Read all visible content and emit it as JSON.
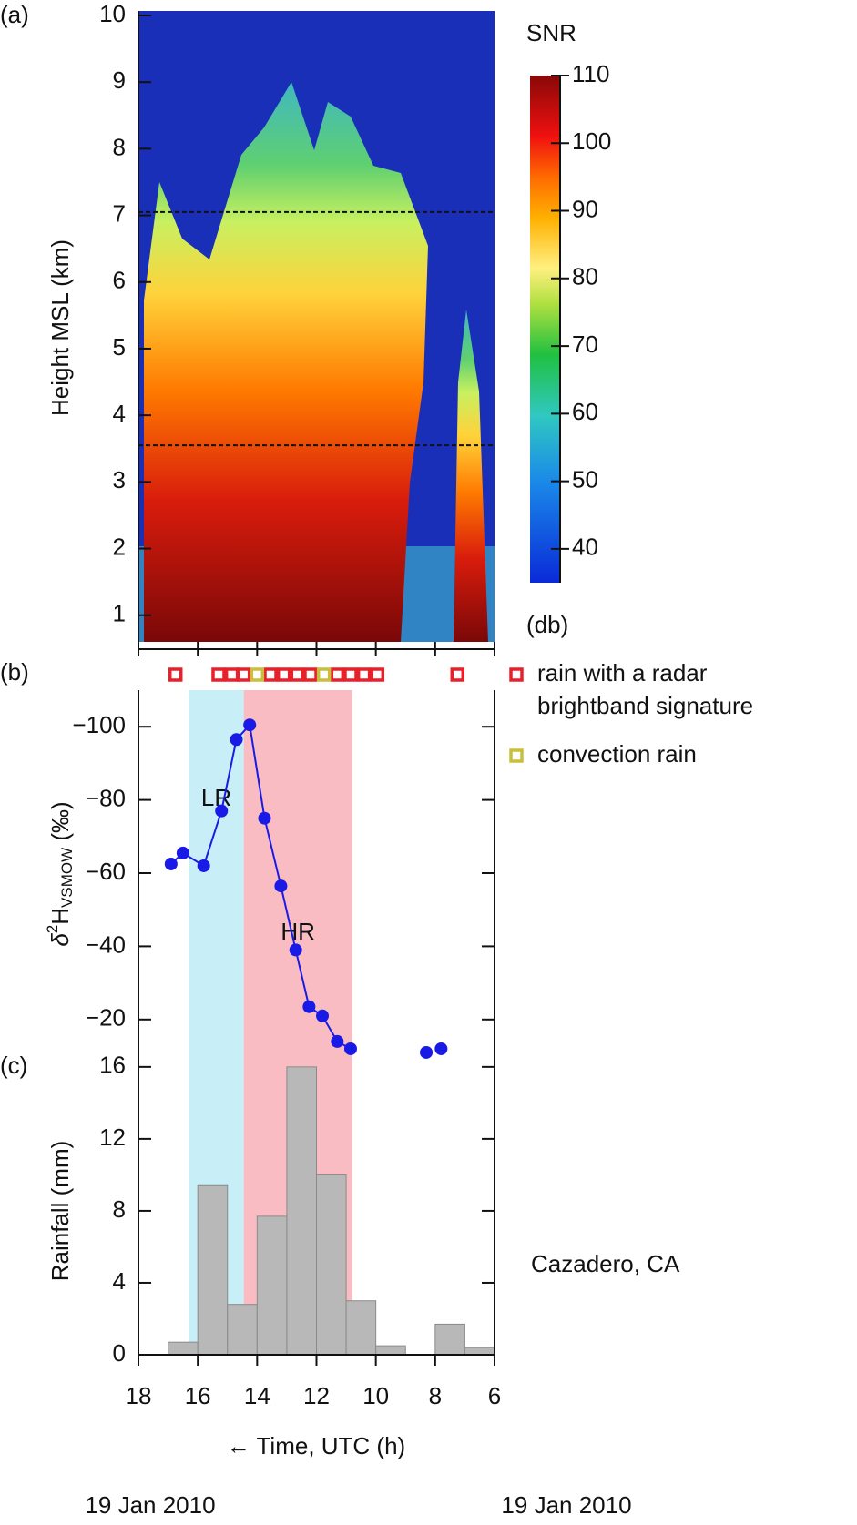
{
  "chart_data": [
    {
      "type": "heatmap",
      "panel": "(a)",
      "ylabel": "Height MSL (km)",
      "xlim": [
        18,
        6
      ],
      "ylim": [
        0.6,
        10
      ],
      "yticks": [
        1,
        2,
        3,
        4,
        5,
        6,
        7,
        8,
        9,
        10
      ],
      "xticks": [
        18,
        16,
        14,
        12,
        10,
        8,
        6
      ],
      "reference_lines": [
        7.05,
        3.55
      ],
      "colorbar": {
        "title": "SNR",
        "unit": "(db)",
        "lim": [
          35,
          110
        ],
        "ticks": [
          40,
          50,
          60,
          70,
          80,
          90,
          100,
          110
        ]
      }
    },
    {
      "type": "line",
      "panel": "(b)",
      "ylabel": {
        "delta": "δ",
        "sup": "2",
        "h": "H",
        "sub": "VSMOW",
        "unit": " (‰)"
      },
      "xlim": [
        18,
        6
      ],
      "ylim": [
        -10,
        -110
      ],
      "yticks": [
        {
          "value": -20,
          "label": "−20"
        },
        {
          "value": -40,
          "label": "−40"
        },
        {
          "value": -60,
          "label": "−60"
        },
        {
          "value": -80,
          "label": "−80"
        },
        {
          "value": -100,
          "label": "−100"
        }
      ],
      "series": [
        {
          "color": "#1a1ae6",
          "line": true,
          "x": [
            16.9,
            16.5,
            15.8,
            15.2,
            14.7,
            14.25,
            13.75,
            13.2,
            12.7,
            12.25,
            11.8,
            11.3,
            10.85
          ],
          "values": [
            -62.5,
            -65.5,
            -62,
            -77,
            -96.5,
            -100.5,
            -75,
            -56.5,
            -39,
            -23.5,
            -21,
            -14,
            -12
          ]
        },
        {
          "color": "#1a1ae6",
          "line": false,
          "x": [
            8.3,
            7.8
          ],
          "values": [
            -11,
            -12
          ]
        }
      ],
      "markers": [
        {
          "name": "rain with a radar brightband signature",
          "color": "#e8202a",
          "x": [
            16.75,
            15.3,
            14.85,
            14.45,
            13.55,
            13.1,
            12.65,
            12.2,
            11.3,
            10.85,
            10.4,
            9.95,
            7.25
          ]
        },
        {
          "name": "convection rain",
          "color": "#c8c03c",
          "x": [
            14.0,
            11.75
          ]
        }
      ],
      "regions": [
        {
          "label": "LR",
          "color": "#c8eef8",
          "x": [
            16.3,
            14.45
          ]
        },
        {
          "label": "HR",
          "color": "#f8bcc2",
          "x": [
            14.45,
            10.8
          ]
        }
      ]
    },
    {
      "type": "histogram",
      "panel": "(c)",
      "ylabel": "Rainfall (mm)",
      "xlim": [
        18,
        6
      ],
      "ylim": [
        0,
        16.6
      ],
      "yticks": [
        0,
        4,
        8,
        12,
        16
      ],
      "xticks": [
        18,
        16,
        14,
        12,
        10,
        8,
        6
      ],
      "bins": [
        17,
        16,
        15,
        14,
        13,
        12,
        11,
        10,
        9,
        8,
        7,
        6
      ],
      "values": [
        0.7,
        9.4,
        2.8,
        7.7,
        16,
        10,
        3.0,
        0.5,
        0,
        1.7,
        0.4
      ],
      "color": "#b8b8b8",
      "xlabel": "← Time, UTC (h)",
      "annotation": "Cazadero, CA",
      "date_labels": [
        "19 Jan 2010",
        "19 Jan 2010"
      ]
    }
  ]
}
